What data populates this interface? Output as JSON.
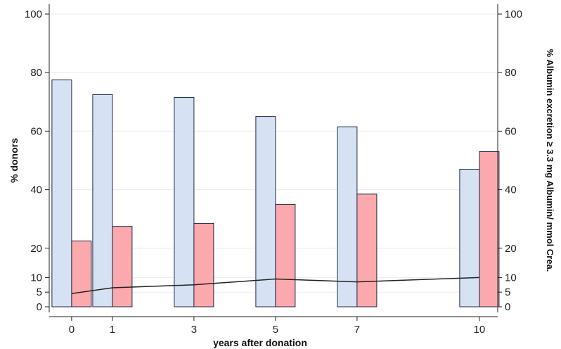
{
  "chart_data": {
    "type": "bar",
    "title": "",
    "xlabel": "years after donation",
    "ylabel": "% donors",
    "y2label": "% Albumin  excretion ≥ 3.3 mg Albumin/ mmol Crea.",
    "ylim": [
      0,
      100
    ],
    "y2lim": [
      0,
      100
    ],
    "x_ticks": [
      0,
      1,
      3,
      5,
      7,
      10
    ],
    "y_ticks": [
      0,
      5,
      10,
      20,
      40,
      60,
      80,
      100
    ],
    "grid": true,
    "legend": "none",
    "series": [
      {
        "kind": "bar",
        "color": "#d6e2f3",
        "values": [
          77.5,
          72.5,
          71.5,
          65,
          61.5,
          47
        ]
      },
      {
        "kind": "bar",
        "color": "#fba9ad",
        "values": [
          22.5,
          27.5,
          28.5,
          35,
          38.5,
          53
        ]
      },
      {
        "kind": "line",
        "color": "#222222",
        "values": [
          4.5,
          6.5,
          7.5,
          9.5,
          8.5,
          10
        ]
      }
    ]
  }
}
